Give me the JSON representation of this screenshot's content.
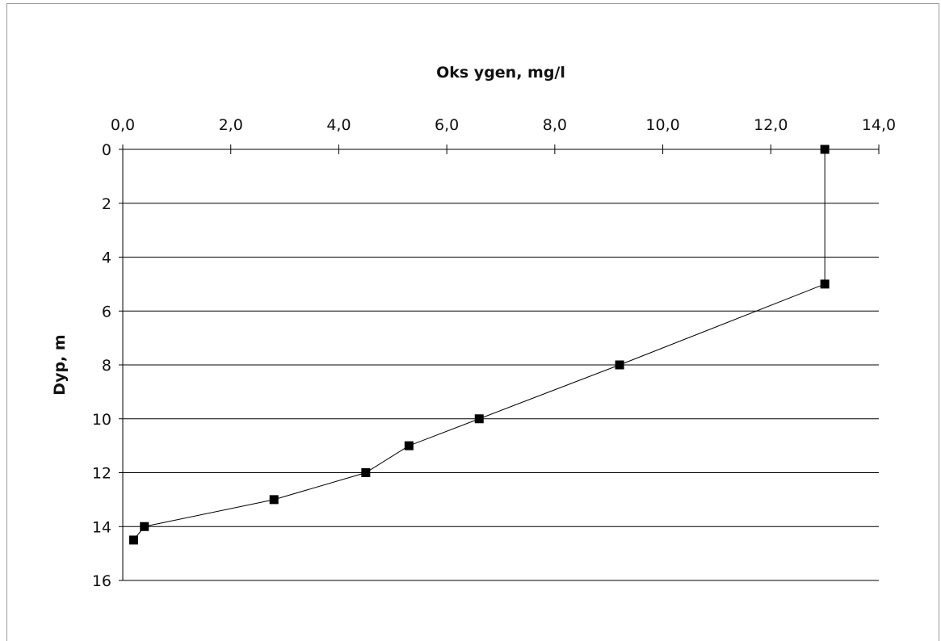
{
  "chart_data": {
    "type": "line",
    "xlabel": "Oks ygen, mg/l",
    "ylabel": "Dyp, m",
    "xlim": [
      0,
      14
    ],
    "ylim": [
      0,
      16
    ],
    "x_axis_position": "top",
    "y_axis_inverted": true,
    "x_ticks": [
      "0,0",
      "2,0",
      "4,0",
      "6,0",
      "8,0",
      "10,0",
      "12,0",
      "14,0"
    ],
    "y_ticks": [
      "0",
      "2",
      "4",
      "6",
      "8",
      "10",
      "12",
      "14",
      "16"
    ],
    "grid": "horizontal",
    "legend": "none",
    "marker": "square",
    "series": [
      {
        "points": [
          {
            "x": 13.0,
            "y": 0
          },
          {
            "x": 13.0,
            "y": 5
          },
          {
            "x": 9.2,
            "y": 8
          },
          {
            "x": 6.6,
            "y": 10
          },
          {
            "x": 5.3,
            "y": 11
          },
          {
            "x": 4.5,
            "y": 12
          },
          {
            "x": 2.8,
            "y": 13
          },
          {
            "x": 0.4,
            "y": 14
          },
          {
            "x": 0.2,
            "y": 14.5
          }
        ]
      }
    ]
  }
}
